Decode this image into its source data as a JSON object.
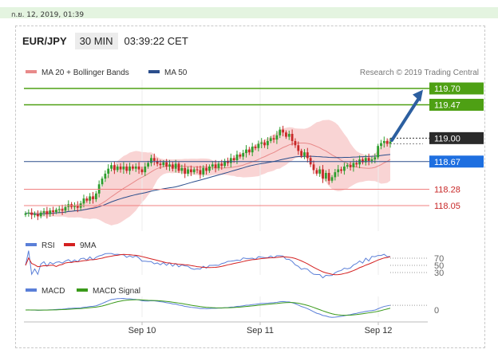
{
  "datebar": {
    "text": "ก.ย. 12, 2019, 01:39"
  },
  "header": {
    "symbol": "EUR/JPY",
    "timeframe": "30 MIN",
    "time": "03:39:22 CET"
  },
  "legend": {
    "ma_bb": "MA 20 + Bollinger Bands",
    "ma50": "MA 50",
    "research": "Research © 2019 Trading Central"
  },
  "colors": {
    "up": "#2e9e2e",
    "down": "#c82828",
    "ma20": "#e88a8a",
    "ma50": "#2b4e8c",
    "band": "#f7c6c6",
    "green_level": "#4ea014",
    "blue_level": "#1e6fe0",
    "red_level": "#f08080",
    "arrow": "#2c5fa0",
    "rsi": "#5a7fd8",
    "ma9": "#d42020",
    "macd": "#5a7fd8",
    "signal": "#3a9a1a"
  },
  "chart_data": [
    {
      "type": "candlestick",
      "x_ticks": [
        "Sep 10",
        "Sep 11",
        "Sep 12"
      ],
      "ylim": [
        117.5,
        119.95
      ],
      "levels": [
        {
          "label": "119.70",
          "value": 119.7,
          "kind": "resistance"
        },
        {
          "label": "119.47",
          "value": 119.47,
          "kind": "resistance"
        },
        {
          "label": "119.00",
          "value": 119.0,
          "kind": "pivot"
        },
        {
          "label": "118.67",
          "value": 118.67,
          "kind": "support"
        },
        {
          "label": "118.28",
          "value": 118.28,
          "kind": "support"
        },
        {
          "label": "118.05",
          "value": 118.05,
          "kind": "support"
        }
      ],
      "closes": [
        117.94,
        117.95,
        117.92,
        117.93,
        117.9,
        117.95,
        117.97,
        117.93,
        117.98,
        117.96,
        117.99,
        118.0,
        117.98,
        118.03,
        118.07,
        118.03,
        118.05,
        118.02,
        118.08,
        118.15,
        118.12,
        118.18,
        118.14,
        118.22,
        118.35,
        118.43,
        118.5,
        118.57,
        118.62,
        118.55,
        118.6,
        118.56,
        118.6,
        118.54,
        118.6,
        118.57,
        118.6,
        118.56,
        118.52,
        118.6,
        118.65,
        118.72,
        118.68,
        118.64,
        118.62,
        118.66,
        118.6,
        118.63,
        118.57,
        118.64,
        118.54,
        118.58,
        118.5,
        118.56,
        118.52,
        118.56,
        118.55,
        118.49,
        118.58,
        118.54,
        118.6,
        118.63,
        118.58,
        118.64,
        118.61,
        118.68,
        118.65,
        118.72,
        118.69,
        118.77,
        118.74,
        118.79,
        118.84,
        118.8,
        118.88,
        118.86,
        118.92,
        118.94,
        118.9,
        118.96,
        119.0,
        118.98,
        119.04,
        119.12,
        119.08,
        119.02,
        119.06,
        118.96,
        118.9,
        118.82,
        118.75,
        118.8,
        118.72,
        118.63,
        118.55,
        118.5,
        118.56,
        118.43,
        118.51,
        118.4,
        118.45,
        118.52,
        118.56,
        118.54,
        118.6,
        118.62,
        118.59,
        118.65,
        118.63,
        118.7,
        118.66,
        118.72,
        118.68,
        118.7,
        118.73,
        118.89,
        118.93,
        118.96,
        118.92,
        118.95
      ],
      "rsi": {
        "levels": [
          "70",
          "50",
          "30"
        ]
      },
      "macd": {
        "levels": [
          "0"
        ]
      }
    }
  ]
}
